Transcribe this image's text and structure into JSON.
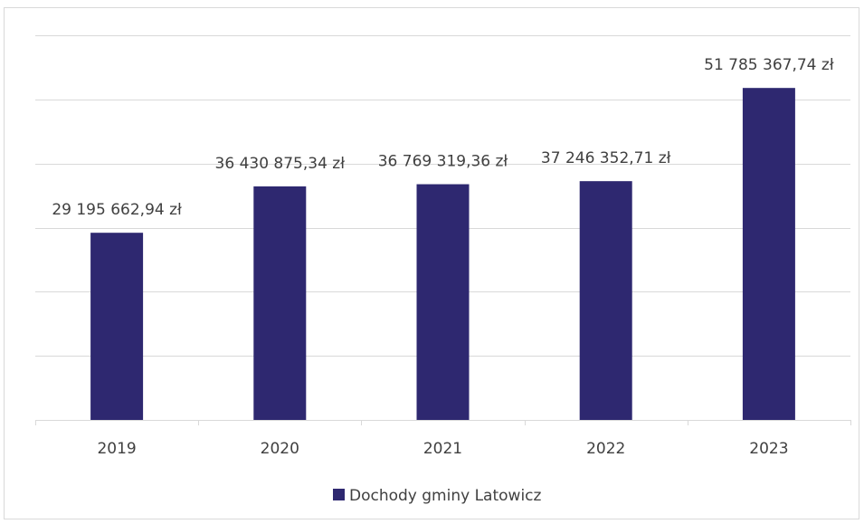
{
  "chart_data": {
    "type": "bar",
    "title": "",
    "xlabel": "",
    "ylabel": "",
    "categories": [
      "2019",
      "2020",
      "2021",
      "2022",
      "2023"
    ],
    "series": [
      {
        "name": "Dochody gminy Latowicz",
        "color": "#2e2870",
        "values": [
          29195662.94,
          36430875.34,
          36769319.36,
          37246352.71,
          51785367.74
        ],
        "labels": [
          "29 195 662,94 zł",
          "36 430 875,34 zł",
          "36 769 319,36 zł",
          "37 246 352,71 zł",
          "51 785 367,74 zł"
        ]
      }
    ],
    "ylim": [
      0,
      60000000
    ],
    "y_gridlines": [
      10000000,
      20000000,
      30000000,
      40000000,
      50000000,
      60000000
    ],
    "grid": true,
    "y_axis_labels_shown": false,
    "legend_position": "bottom",
    "colors": {
      "bar": "#2e2870",
      "grid": "#d9d9d9",
      "text": "#404040"
    }
  }
}
